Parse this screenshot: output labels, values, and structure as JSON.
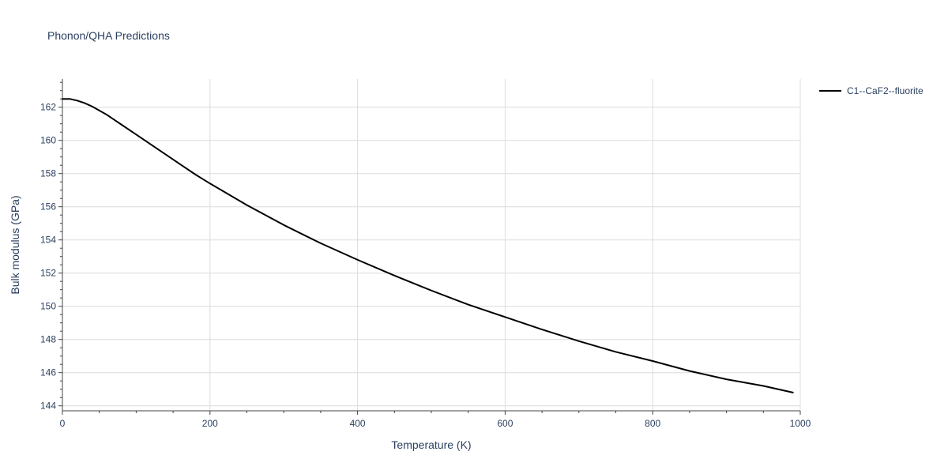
{
  "chart_data": {
    "type": "line",
    "title": "Phonon/QHA Predictions",
    "xlabel": "Temperature (K)",
    "ylabel": "Bulk modulus (GPa)",
    "xlim": [
      0,
      1000
    ],
    "ylim": [
      143.7,
      163.7
    ],
    "xticks": [
      0,
      200,
      400,
      600,
      800,
      1000
    ],
    "yticks": [
      144,
      146,
      148,
      150,
      152,
      154,
      156,
      158,
      160,
      162
    ],
    "grid": true,
    "legend_position": "top-right, outside plot",
    "series": [
      {
        "name": "C1--CaF2--fluorite",
        "color": "#000000",
        "x": [
          0,
          10,
          20,
          30,
          40,
          50,
          60,
          70,
          80,
          100,
          120,
          140,
          160,
          180,
          200,
          250,
          300,
          350,
          400,
          450,
          500,
          550,
          600,
          650,
          700,
          750,
          800,
          850,
          900,
          950,
          990
        ],
        "y": [
          162.5,
          162.5,
          162.4,
          162.25,
          162.05,
          161.8,
          161.55,
          161.25,
          160.95,
          160.35,
          159.75,
          159.15,
          158.55,
          157.95,
          157.4,
          156.1,
          154.9,
          153.8,
          152.8,
          151.85,
          150.95,
          150.1,
          149.35,
          148.6,
          147.9,
          147.25,
          146.7,
          146.1,
          145.6,
          145.2,
          144.8
        ]
      }
    ]
  }
}
